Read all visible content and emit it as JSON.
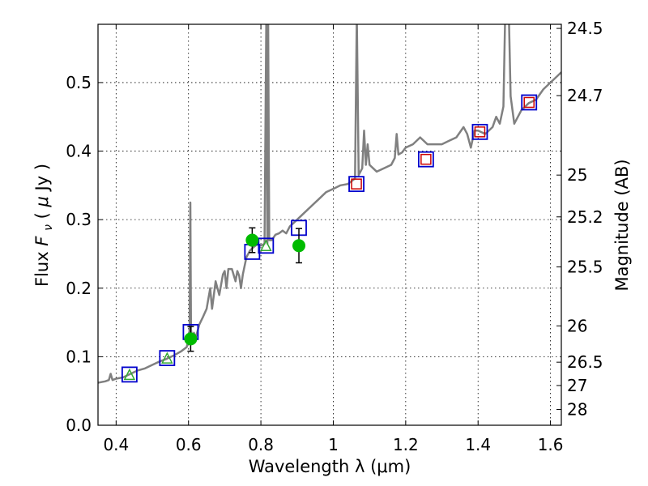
{
  "chart_data": {
    "type": "scatter",
    "xlabel": "Wavelength  λ (μm)",
    "ylabel": "Flux  F_ν  ( μJy )",
    "ylabel_parts": {
      "prefix": "Flux  ",
      "symbol": "F",
      "subscript": "ν",
      "mid": "  ( ",
      "mu": "μ",
      "suffix": "Jy )"
    },
    "y2label": "Magnitude (AB)",
    "xlim": [
      0.35,
      1.63
    ],
    "ylim": [
      0.0,
      0.585
    ],
    "grid": true,
    "x_ticks": [
      0.4,
      0.6,
      0.8,
      1.0,
      1.2,
      1.4,
      1.6
    ],
    "x_tick_labels": [
      "0.4",
      "0.6",
      "0.8",
      "1",
      "1.2",
      "1.4",
      "1.6"
    ],
    "y_ticks": [
      0.0,
      0.1,
      0.2,
      0.3,
      0.4,
      0.5
    ],
    "y_tick_labels": [
      "0.0",
      "0.1",
      "0.2",
      "0.3",
      "0.4",
      "0.5"
    ],
    "mag_ticks": [
      {
        "label": "24.5",
        "flux": 0.579
      },
      {
        "label": "24.7",
        "flux": 0.481
      },
      {
        "label": "25",
        "flux": 0.365
      },
      {
        "label": "25.2",
        "flux": 0.304
      },
      {
        "label": "25.5",
        "flux": 0.231
      },
      {
        "label": "26",
        "flux": 0.145
      },
      {
        "label": "26.5",
        "flux": 0.092
      },
      {
        "label": "27",
        "flux": 0.058
      },
      {
        "label": "28",
        "flux": 0.023
      }
    ],
    "colors": {
      "sed": "#808080",
      "model_box": "#0000cc",
      "model_red": "#cc0000",
      "model_green": "#33aa33",
      "observed": "#00bb00",
      "errorbar": "#000000"
    },
    "sed_spectrum": [
      [
        0.35,
        0.062
      ],
      [
        0.37,
        0.064
      ],
      [
        0.38,
        0.066
      ],
      [
        0.385,
        0.075
      ],
      [
        0.39,
        0.066
      ],
      [
        0.4,
        0.068
      ],
      [
        0.42,
        0.07
      ],
      [
        0.44,
        0.075
      ],
      [
        0.46,
        0.08
      ],
      [
        0.48,
        0.083
      ],
      [
        0.5,
        0.088
      ],
      [
        0.52,
        0.093
      ],
      [
        0.54,
        0.097
      ],
      [
        0.56,
        0.102
      ],
      [
        0.58,
        0.108
      ],
      [
        0.595,
        0.114
      ],
      [
        0.6,
        0.125
      ],
      [
        0.603,
        0.14
      ],
      [
        0.605,
        0.325
      ],
      [
        0.607,
        0.14
      ],
      [
        0.61,
        0.125
      ],
      [
        0.615,
        0.135
      ],
      [
        0.62,
        0.128
      ],
      [
        0.63,
        0.147
      ],
      [
        0.64,
        0.158
      ],
      [
        0.65,
        0.17
      ],
      [
        0.66,
        0.2
      ],
      [
        0.665,
        0.17
      ],
      [
        0.675,
        0.21
      ],
      [
        0.685,
        0.19
      ],
      [
        0.695,
        0.22
      ],
      [
        0.7,
        0.225
      ],
      [
        0.705,
        0.2
      ],
      [
        0.71,
        0.228
      ],
      [
        0.72,
        0.228
      ],
      [
        0.73,
        0.21
      ],
      [
        0.735,
        0.225
      ],
      [
        0.74,
        0.218
      ],
      [
        0.745,
        0.2
      ],
      [
        0.75,
        0.22
      ],
      [
        0.76,
        0.245
      ],
      [
        0.77,
        0.255
      ],
      [
        0.78,
        0.26
      ],
      [
        0.79,
        0.264
      ],
      [
        0.8,
        0.262
      ],
      [
        0.81,
        0.265
      ],
      [
        0.815,
        0.6
      ],
      [
        0.818,
        0.265
      ],
      [
        0.82,
        0.6
      ],
      [
        0.823,
        0.27
      ],
      [
        0.83,
        0.27
      ],
      [
        0.84,
        0.278
      ],
      [
        0.85,
        0.28
      ],
      [
        0.86,
        0.284
      ],
      [
        0.87,
        0.28
      ],
      [
        0.88,
        0.29
      ],
      [
        0.89,
        0.295
      ],
      [
        0.9,
        0.3
      ],
      [
        0.92,
        0.31
      ],
      [
        0.94,
        0.32
      ],
      [
        0.96,
        0.33
      ],
      [
        0.98,
        0.34
      ],
      [
        1.0,
        0.345
      ],
      [
        1.02,
        0.35
      ],
      [
        1.04,
        0.352
      ],
      [
        1.06,
        0.36
      ],
      [
        1.065,
        0.6
      ],
      [
        1.07,
        0.365
      ],
      [
        1.08,
        0.375
      ],
      [
        1.085,
        0.43
      ],
      [
        1.09,
        0.38
      ],
      [
        1.095,
        0.41
      ],
      [
        1.1,
        0.38
      ],
      [
        1.11,
        0.375
      ],
      [
        1.12,
        0.37
      ],
      [
        1.14,
        0.375
      ],
      [
        1.16,
        0.38
      ],
      [
        1.17,
        0.39
      ],
      [
        1.175,
        0.425
      ],
      [
        1.18,
        0.395
      ],
      [
        1.19,
        0.398
      ],
      [
        1.2,
        0.405
      ],
      [
        1.22,
        0.41
      ],
      [
        1.24,
        0.42
      ],
      [
        1.26,
        0.41
      ],
      [
        1.28,
        0.41
      ],
      [
        1.3,
        0.41
      ],
      [
        1.32,
        0.415
      ],
      [
        1.34,
        0.42
      ],
      [
        1.36,
        0.435
      ],
      [
        1.37,
        0.425
      ],
      [
        1.38,
        0.405
      ],
      [
        1.39,
        0.43
      ],
      [
        1.4,
        0.43
      ],
      [
        1.42,
        0.425
      ],
      [
        1.44,
        0.435
      ],
      [
        1.45,
        0.45
      ],
      [
        1.46,
        0.44
      ],
      [
        1.47,
        0.465
      ],
      [
        1.475,
        0.6
      ],
      [
        1.485,
        0.6
      ],
      [
        1.49,
        0.48
      ],
      [
        1.5,
        0.44
      ],
      [
        1.51,
        0.45
      ],
      [
        1.52,
        0.46
      ],
      [
        1.54,
        0.47
      ],
      [
        1.56,
        0.475
      ],
      [
        1.58,
        0.49
      ],
      [
        1.6,
        0.5
      ],
      [
        1.62,
        0.51
      ],
      [
        1.63,
        0.515
      ]
    ],
    "model_photometry": [
      {
        "x": 0.437,
        "y": 0.074,
        "inner": "green"
      },
      {
        "x": 0.541,
        "y": 0.098,
        "inner": "green"
      },
      {
        "x": 0.606,
        "y": 0.136,
        "inner": "none"
      },
      {
        "x": 0.776,
        "y": 0.253,
        "inner": "none"
      },
      {
        "x": 0.814,
        "y": 0.262,
        "inner": "green"
      },
      {
        "x": 0.905,
        "y": 0.288,
        "inner": "none"
      },
      {
        "x": 1.064,
        "y": 0.352,
        "inner": "red"
      },
      {
        "x": 1.256,
        "y": 0.388,
        "inner": "red"
      },
      {
        "x": 1.405,
        "y": 0.428,
        "inner": "red"
      },
      {
        "x": 1.541,
        "y": 0.471,
        "inner": "red"
      }
    ],
    "observed_photometry": [
      {
        "x": 0.606,
        "y": 0.126,
        "err": 0.018
      },
      {
        "x": 0.776,
        "y": 0.27,
        "err": 0.018
      },
      {
        "x": 0.905,
        "y": 0.262,
        "err": 0.025
      }
    ]
  }
}
